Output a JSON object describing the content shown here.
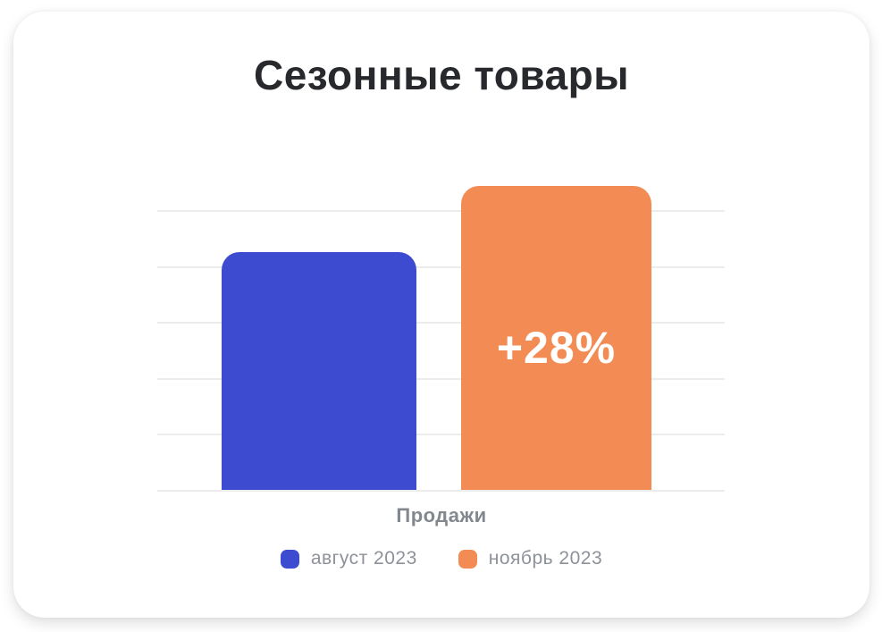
{
  "card": {
    "background_color": "#FFFFFF"
  },
  "colors": {
    "title_text": "#27292C",
    "category_label_text": "#83878E",
    "legend_text": "#8D9199",
    "gridline": "#ECECEC",
    "annotation_text": "#FFFFFF"
  },
  "chart_data": {
    "type": "bar",
    "title": "Сезонные товары",
    "categories": [
      "Продажи"
    ],
    "series": [
      {
        "name": "август 2023",
        "value": 100,
        "color": "#3D4BD0"
      },
      {
        "name": "ноябрь 2023",
        "value": 128,
        "color": "#F28C54",
        "annotation": "+28%"
      }
    ],
    "grid": "horizontal",
    "gridline_count": 6,
    "legend_position": "bottom",
    "axis_tick_labels": "none"
  }
}
